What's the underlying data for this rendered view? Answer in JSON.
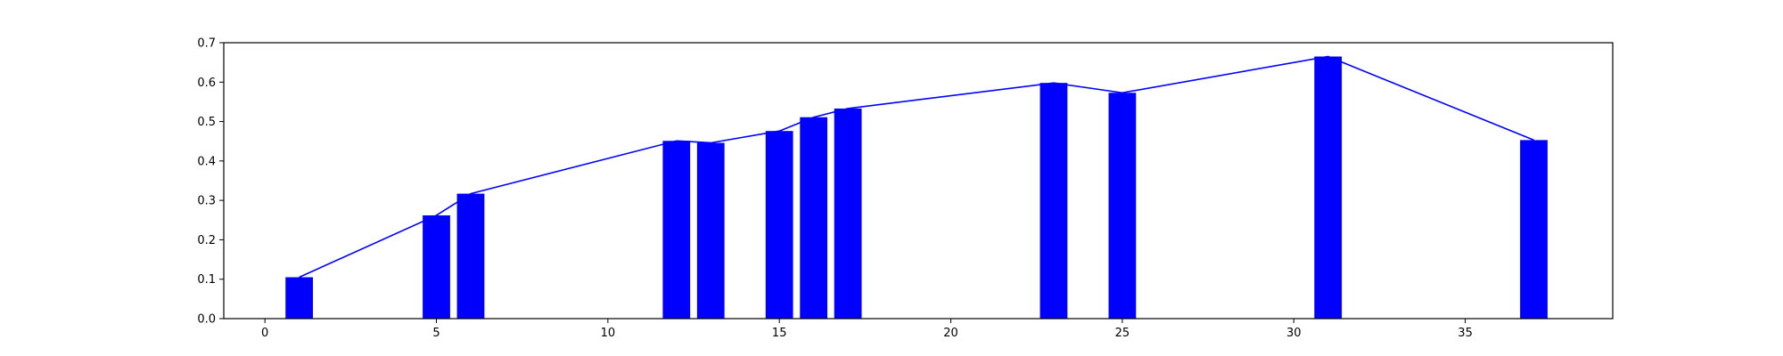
{
  "chart_data": {
    "type": "bar",
    "title": "",
    "xlabel": "",
    "ylabel": "",
    "xlim": [
      -1.2,
      39.3
    ],
    "ylim": [
      0,
      0.7
    ],
    "xticks": [
      0,
      5,
      10,
      15,
      20,
      25,
      30,
      35
    ],
    "yticks": [
      0.0,
      0.1,
      0.2,
      0.3,
      0.4,
      0.5,
      0.6,
      0.7
    ],
    "xtick_labels": [
      "0",
      "5",
      "10",
      "15",
      "20",
      "25",
      "30",
      "35"
    ],
    "ytick_labels": [
      "0.0",
      "0.1",
      "0.2",
      "0.3",
      "0.4",
      "0.5",
      "0.6",
      "0.7"
    ],
    "grid": false,
    "legend": "none",
    "bar_width": 0.8,
    "color": "#0000ff",
    "series": [
      {
        "type": "bar",
        "x": [
          1,
          5,
          6,
          12,
          13,
          15,
          16,
          17,
          23,
          25,
          31,
          37
        ],
        "values": [
          0.105,
          0.262,
          0.317,
          0.451,
          0.446,
          0.476,
          0.511,
          0.533,
          0.598,
          0.573,
          0.665,
          0.453
        ]
      },
      {
        "type": "line",
        "x": [
          1,
          5,
          6,
          12,
          13,
          15,
          16,
          17,
          23,
          25,
          31,
          37
        ],
        "values": [
          0.105,
          0.262,
          0.317,
          0.451,
          0.446,
          0.476,
          0.511,
          0.533,
          0.598,
          0.573,
          0.665,
          0.453
        ]
      }
    ]
  }
}
